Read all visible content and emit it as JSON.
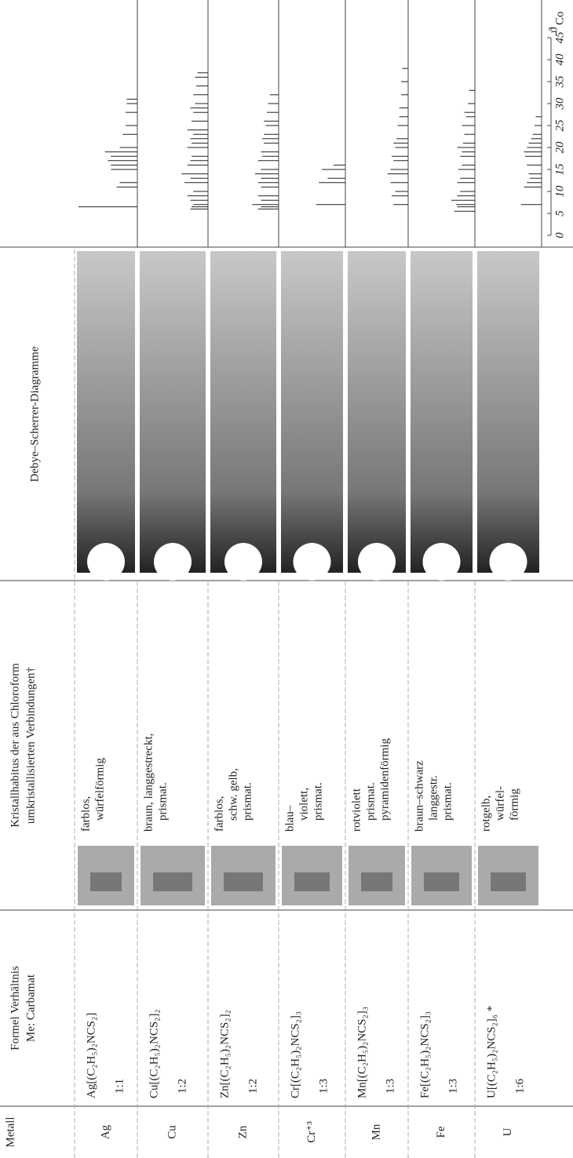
{
  "header": {
    "metall": "Metall",
    "formel": [
      "Formel Verhältnis",
      "Me: Carbamat"
    ],
    "kristall": [
      "Kristallhabitus der aus Chloroform",
      "umkristallisierten Verbindungen†"
    ],
    "debye": "Debye–Scherrer-Diagramme"
  },
  "rows": [
    {
      "metall": "Ag",
      "formel": "Ag[(C₂H₅)₂NCS₂]",
      "ratio": "1:1",
      "habit": [
        "farblos,",
        "würfelförmig"
      ],
      "sticks": [
        [
          6.5,
          100
        ],
        [
          11,
          35
        ],
        [
          12,
          30
        ],
        [
          15,
          45
        ],
        [
          16,
          45
        ],
        [
          17,
          50
        ],
        [
          18,
          45
        ],
        [
          19,
          55
        ],
        [
          20,
          30
        ],
        [
          23,
          25
        ],
        [
          25,
          20
        ],
        [
          28,
          20
        ],
        [
          30,
          18
        ],
        [
          31,
          18
        ]
      ]
    },
    {
      "metall": "Cu",
      "formel": "Cu[(C₂H₅)₂NCS₂]₂",
      "ratio": "1:2",
      "habit": [
        "braun, langgestreckt,",
        "prismat."
      ],
      "sticks": [
        [
          6,
          30
        ],
        [
          6.5,
          28
        ],
        [
          7,
          25
        ],
        [
          8,
          30
        ],
        [
          9,
          35
        ],
        [
          10,
          25
        ],
        [
          12,
          40
        ],
        [
          13,
          30
        ],
        [
          14,
          45
        ],
        [
          16,
          35
        ],
        [
          17,
          30
        ],
        [
          18,
          28
        ],
        [
          20,
          35
        ],
        [
          21,
          28
        ],
        [
          22,
          30
        ],
        [
          23,
          25
        ],
        [
          24,
          35
        ],
        [
          26,
          28
        ],
        [
          28,
          25
        ],
        [
          29,
          30
        ],
        [
          30,
          22
        ],
        [
          32,
          25
        ],
        [
          34,
          20
        ],
        [
          36,
          22
        ],
        [
          37,
          18
        ]
      ]
    },
    {
      "metall": "Zn",
      "formel": "Zn[(C₂H₅)₂NCS₂]₂",
      "ratio": "1:2",
      "habit": [
        "farblos,",
        "schw. gelb,",
        "prismat."
      ],
      "sticks": [
        [
          6,
          35
        ],
        [
          6.5,
          30
        ],
        [
          7,
          45
        ],
        [
          8,
          30
        ],
        [
          9,
          35
        ],
        [
          11,
          30
        ],
        [
          12,
          35
        ],
        [
          13,
          30
        ],
        [
          14,
          40
        ],
        [
          15,
          30
        ],
        [
          17,
          35
        ],
        [
          18,
          28
        ],
        [
          19,
          30
        ],
        [
          21,
          25
        ],
        [
          22,
          28
        ],
        [
          23,
          25
        ],
        [
          25,
          22
        ],
        [
          26,
          25
        ],
        [
          28,
          20
        ],
        [
          30,
          18
        ],
        [
          32,
          15
        ]
      ]
    },
    {
      "metall": "Cr⁺³",
      "formel": "Cr[(C₂H₅)₂NCS₂]₃",
      "ratio": "1:3",
      "habit": [
        "blau–",
        "violett,",
        "prismat."
      ],
      "sticks": [
        [
          7,
          50
        ],
        [
          12,
          45
        ],
        [
          13,
          30
        ],
        [
          15,
          40
        ],
        [
          16,
          20
        ]
      ]
    },
    {
      "metall": "Mn",
      "formel": "Mn[(C₂H₅)₂NCS₂]₃",
      "ratio": "1:3",
      "habit": [
        "rotviolett",
        "prismat.",
        "pyramidenförmig"
      ],
      "sticks": [
        [
          7,
          25
        ],
        [
          9,
          28
        ],
        [
          10,
          22
        ],
        [
          12,
          30
        ],
        [
          14,
          35
        ],
        [
          15,
          30
        ],
        [
          17,
          25
        ],
        [
          18,
          28
        ],
        [
          20,
          22
        ],
        [
          21,
          25
        ],
        [
          22,
          20
        ],
        [
          25,
          18
        ],
        [
          27,
          15
        ],
        [
          29,
          15
        ],
        [
          32,
          12
        ],
        [
          35,
          12
        ],
        [
          38,
          10
        ]
      ]
    },
    {
      "metall": "Fe",
      "formel": "Fe[(C₂H₅)₂NCS₂]₃",
      "ratio": "1:3",
      "habit": [
        "braun–schwarz",
        "langgestr.",
        "prismat."
      ],
      "sticks": [
        [
          5.5,
          35
        ],
        [
          6.5,
          30
        ],
        [
          7,
          32
        ],
        [
          8,
          40
        ],
        [
          9,
          30
        ],
        [
          10,
          25
        ],
        [
          12,
          30
        ],
        [
          13,
          25
        ],
        [
          15,
          28
        ],
        [
          16,
          22
        ],
        [
          18,
          25
        ],
        [
          19,
          22
        ],
        [
          20,
          30
        ],
        [
          21,
          20
        ],
        [
          23,
          18
        ],
        [
          25,
          22
        ],
        [
          27,
          15
        ],
        [
          28,
          18
        ],
        [
          30,
          12
        ],
        [
          33,
          10
        ]
      ]
    },
    {
      "metall": "U",
      "formel": "U[(C₂H₅)₂NCS₂]₆ *",
      "ratio": "1:6",
      "habit": [
        "rotgelb,",
        "würfel-",
        "förmig"
      ],
      "sticks": [
        [
          7,
          35
        ],
        [
          11,
          30
        ],
        [
          12,
          25
        ],
        [
          13,
          20
        ],
        [
          14,
          22
        ],
        [
          16,
          25
        ],
        [
          18,
          28
        ],
        [
          19,
          30
        ],
        [
          20,
          25
        ],
        [
          21,
          22
        ],
        [
          22,
          18
        ],
        [
          23,
          15
        ],
        [
          25,
          12
        ],
        [
          27,
          10
        ]
      ]
    }
  ],
  "axis": {
    "ticks": [
      0,
      5,
      10,
      15,
      20,
      25,
      30,
      35,
      40,
      45
    ],
    "symbol": "ϑ",
    "subscript": "Co"
  }
}
